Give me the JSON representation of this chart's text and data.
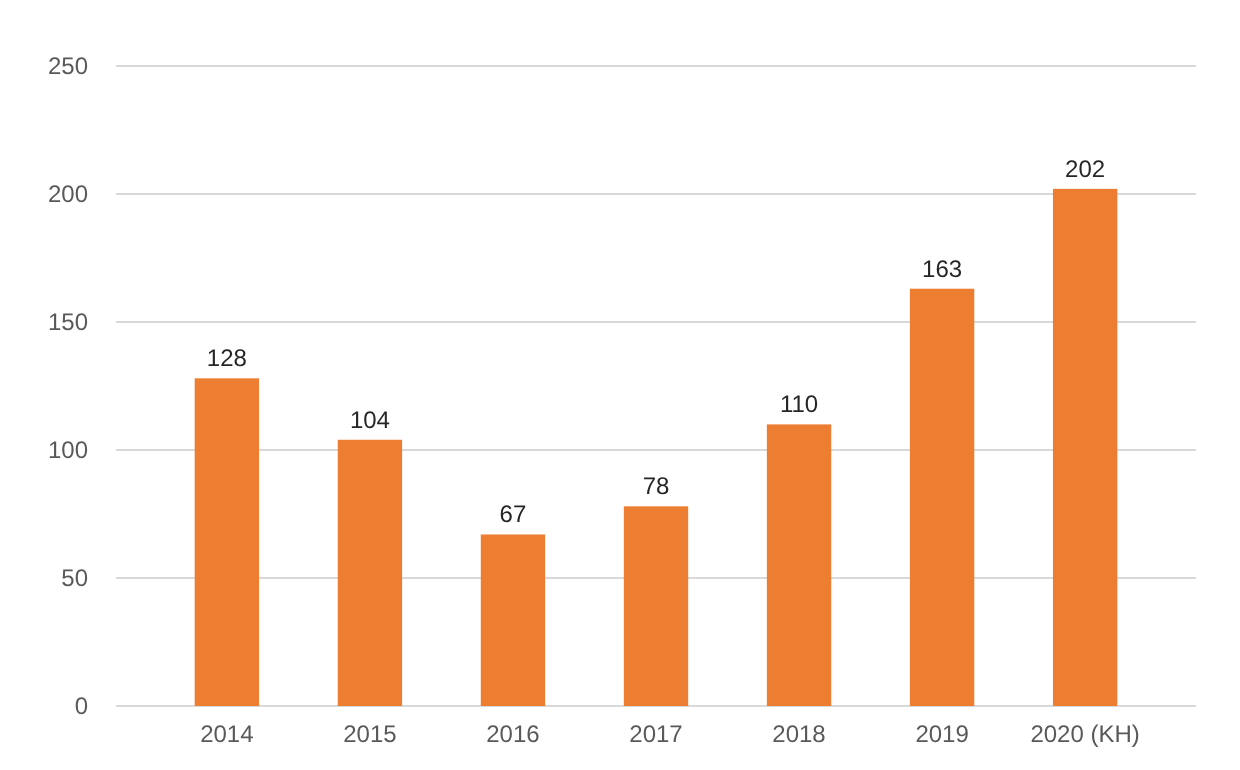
{
  "chart_data": {
    "type": "bar",
    "categories": [
      "2014",
      "2015",
      "2016",
      "2017",
      "2018",
      "2019",
      "2020 (KH)"
    ],
    "values": [
      128,
      104,
      67,
      78,
      110,
      163,
      202
    ],
    "color": "#ed7d31",
    "ylim": [
      0,
      250
    ],
    "yticks": [
      0,
      50,
      100,
      150,
      200,
      250
    ],
    "grid": "y",
    "data_labels": true
  }
}
